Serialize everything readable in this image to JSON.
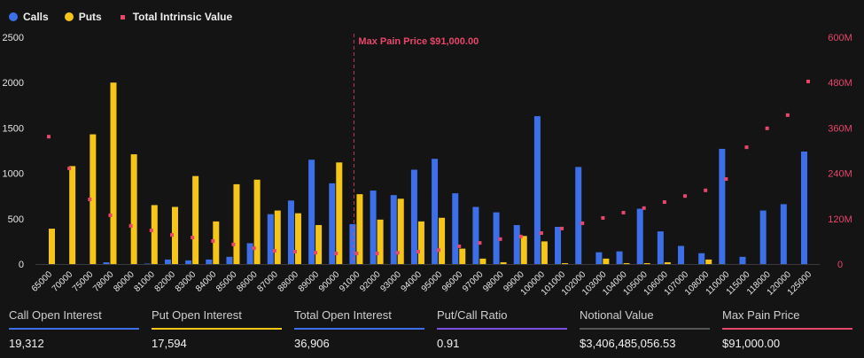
{
  "legend": {
    "calls": "Calls",
    "puts": "Puts",
    "intrinsic": "Total Intrinsic Value"
  },
  "colors": {
    "calls": "#3d6fe8",
    "puts": "#f5c518",
    "intrinsic": "#e8466a",
    "bg": "#141414"
  },
  "chart_data": {
    "type": "bar",
    "categories": [
      "65000",
      "70000",
      "75000",
      "78000",
      "80000",
      "81000",
      "82000",
      "83000",
      "84000",
      "85000",
      "86000",
      "87000",
      "88000",
      "89000",
      "90000",
      "91000",
      "92000",
      "93000",
      "94000",
      "95000",
      "96000",
      "97000",
      "98000",
      "99000",
      "100000",
      "101000",
      "102000",
      "103000",
      "104000",
      "105000",
      "106000",
      "107000",
      "108000",
      "110000",
      "115000",
      "118000",
      "120000",
      "125000"
    ],
    "series": [
      {
        "name": "Calls",
        "type": "bar",
        "axis": "left",
        "values": [
          0,
          0,
          0,
          20,
          0,
          5,
          50,
          40,
          50,
          80,
          230,
          550,
          700,
          1150,
          890,
          440,
          810,
          760,
          1040,
          1160,
          780,
          630,
          570,
          430,
          1630,
          410,
          1070,
          130,
          140,
          610,
          360,
          200,
          120,
          1270,
          80,
          590,
          660,
          1240
        ]
      },
      {
        "name": "Puts",
        "type": "bar",
        "axis": "left",
        "values": [
          390,
          1080,
          1430,
          2000,
          1210,
          650,
          630,
          970,
          470,
          880,
          930,
          590,
          560,
          430,
          1120,
          770,
          490,
          720,
          470,
          510,
          170,
          60,
          20,
          310,
          250,
          10,
          0,
          60,
          10,
          10,
          20,
          0,
          50,
          0,
          0,
          0,
          0,
          0
        ]
      },
      {
        "name": "Total Intrinsic Value",
        "type": "scatter",
        "axis": "right",
        "unit": "M",
        "values": [
          337,
          253,
          171,
          129,
          101,
          89,
          77,
          70,
          61,
          52,
          42,
          35,
          33,
          30,
          28,
          28,
          28,
          30,
          33,
          37,
          47,
          56,
          66,
          73,
          82,
          94,
          108,
          122,
          136,
          148,
          164,
          180,
          195,
          225,
          309,
          359,
          394,
          483
        ]
      }
    ],
    "left_axis": {
      "ylim": [
        0,
        2500
      ],
      "ticks": [
        "0",
        "500",
        "1000",
        "1500",
        "2000",
        "2500"
      ]
    },
    "right_axis": {
      "ylim": [
        0,
        600
      ],
      "ticks": [
        "0",
        "120M",
        "240M",
        "360M",
        "480M",
        "600M"
      ]
    },
    "annotation": {
      "label": "Max Pain Price $91,000.00",
      "at": "91000"
    },
    "legend_position": "top-left",
    "grid": false
  },
  "stats": [
    {
      "label": "Call Open Interest",
      "value": "19,312",
      "color": "#3d6fe8"
    },
    {
      "label": "Put Open Interest",
      "value": "17,594",
      "color": "#f5c518"
    },
    {
      "label": "Total Open Interest",
      "value": "36,906",
      "color": "#3d6fe8"
    },
    {
      "label": "Put/Call Ratio",
      "value": "0.91",
      "color": "#7b4fe0"
    },
    {
      "label": "Notional Value",
      "value": "$3,406,485,056.53",
      "color": "#555555"
    },
    {
      "label": "Max Pain Price",
      "value": "$91,000.00",
      "color": "#e8466a"
    }
  ]
}
